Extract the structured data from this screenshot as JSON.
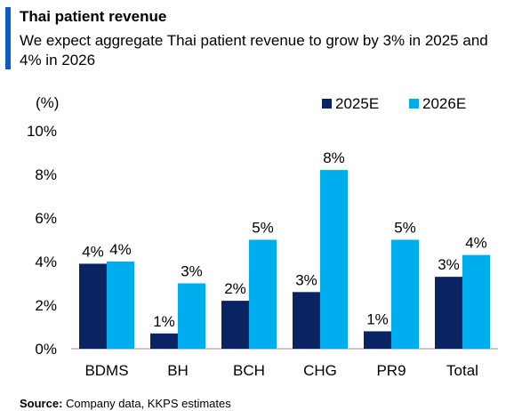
{
  "header": {
    "title": "Thai patient revenue",
    "subtitle": "We expect aggregate Thai patient revenue to grow by 3% in 2025 and 4% in 2026"
  },
  "footer": {
    "source_label": "Source:",
    "source_text": "Company data, KKPS estimates"
  },
  "colors": {
    "accent": "#0b5cc4",
    "series_2025E": "#0a2463",
    "series_2026E": "#00aeef"
  },
  "chart_data": {
    "type": "bar",
    "unit_label": "(%)",
    "categories": [
      "BDMS",
      "BH",
      "BCH",
      "CHG",
      "PR9",
      "Total"
    ],
    "series": [
      {
        "name": "2025E",
        "values": [
          3.9,
          0.7,
          2.2,
          2.6,
          0.8,
          3.3
        ],
        "labels": [
          "4%",
          "1%",
          "2%",
          "3%",
          "1%",
          "3%"
        ]
      },
      {
        "name": "2026E",
        "values": [
          4.0,
          3.0,
          5.0,
          8.2,
          5.0,
          4.3
        ],
        "labels": [
          "4%",
          "3%",
          "5%",
          "8%",
          "5%",
          "4%"
        ]
      }
    ],
    "ylim": [
      0,
      10
    ],
    "yticks": [
      0,
      2,
      4,
      6,
      8,
      10
    ],
    "ytick_labels": [
      "0%",
      "2%",
      "4%",
      "6%",
      "8%",
      "10%"
    ],
    "grid": false,
    "legend_position": "top-right"
  }
}
